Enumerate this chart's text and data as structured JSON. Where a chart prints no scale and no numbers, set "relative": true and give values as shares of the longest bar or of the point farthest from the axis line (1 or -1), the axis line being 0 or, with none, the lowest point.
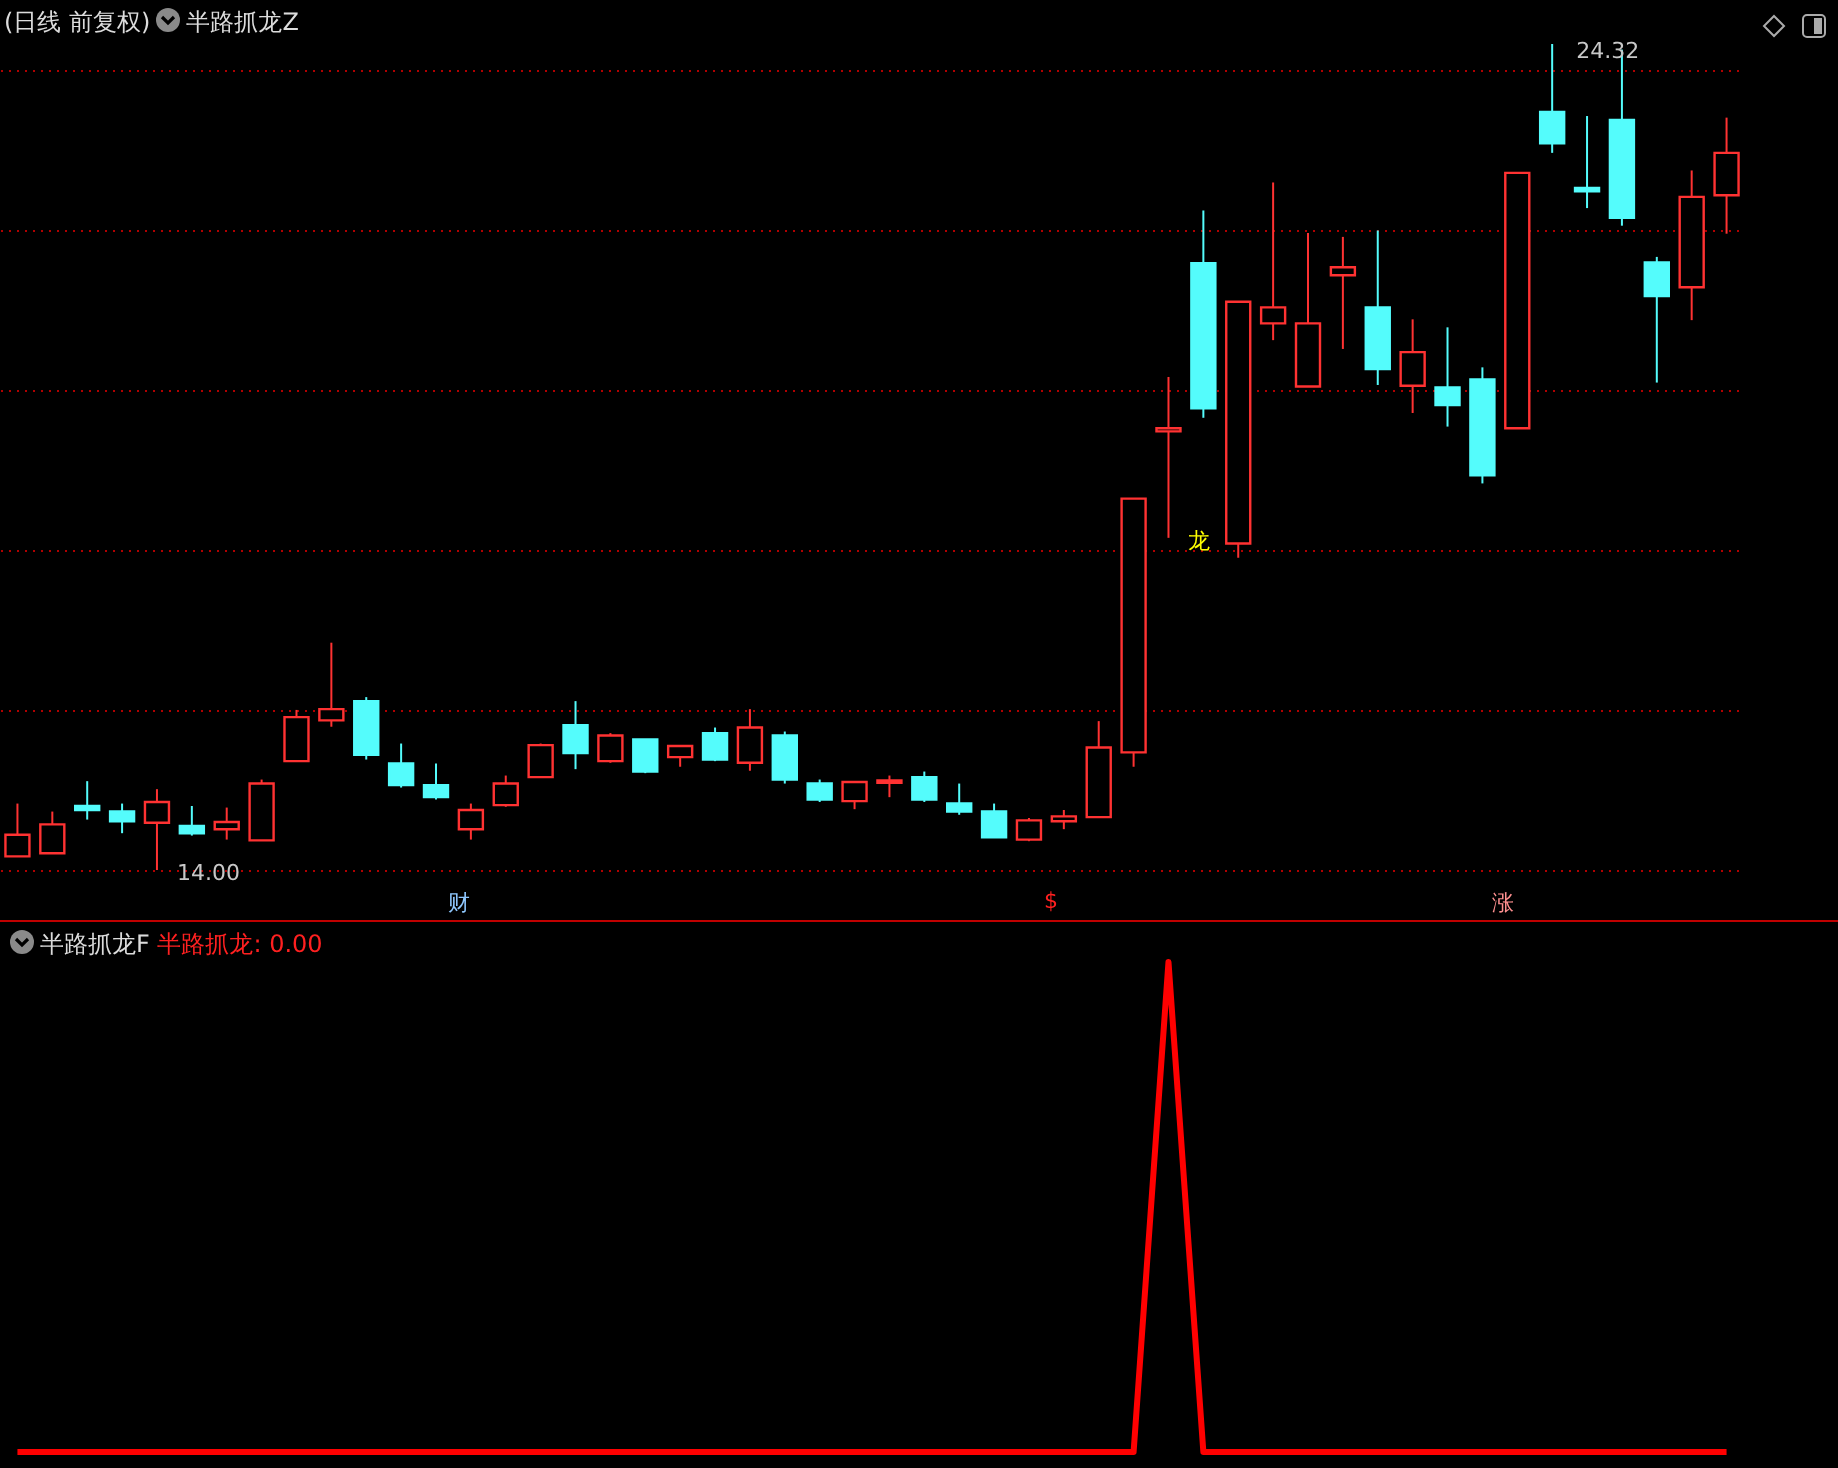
{
  "chart_data": [
    {
      "type": "candlestick",
      "title": "(日线 前复权)",
      "subtitle": "半路抓龙Z",
      "categories": [
        null,
        null,
        null,
        null,
        null,
        null,
        null,
        null,
        null,
        null,
        null,
        null,
        null,
        null,
        null,
        null,
        null,
        null,
        null,
        null,
        null,
        null,
        null,
        null,
        null,
        null,
        null,
        null,
        null,
        null,
        null,
        null,
        null,
        null,
        null,
        null,
        null,
        null,
        null,
        null,
        null,
        null,
        null,
        null,
        null,
        null,
        null,
        null,
        null,
        null
      ],
      "ohlc": [
        [
          14.17,
          14.83,
          14.17,
          14.44
        ],
        [
          14.21,
          14.73,
          14.21,
          14.57
        ],
        [
          14.8,
          15.11,
          14.63,
          14.75
        ],
        [
          14.73,
          14.83,
          14.46,
          14.61
        ],
        [
          14.59,
          15.01,
          14.0,
          14.85
        ],
        [
          14.55,
          14.8,
          14.43,
          14.46
        ],
        [
          14.51,
          14.78,
          14.38,
          14.6
        ],
        [
          14.37,
          15.13,
          14.37,
          15.08
        ],
        [
          15.36,
          16.0,
          15.36,
          15.91
        ],
        [
          15.87,
          16.84,
          15.79,
          16.01
        ],
        [
          16.11,
          16.16,
          15.38,
          15.44
        ],
        [
          15.33,
          15.58,
          15.03,
          15.06
        ],
        [
          15.06,
          15.33,
          14.88,
          14.91
        ],
        [
          14.51,
          14.83,
          14.38,
          14.75
        ],
        [
          14.81,
          15.18,
          14.79,
          15.08
        ],
        [
          15.16,
          15.58,
          15.16,
          15.56
        ],
        [
          15.81,
          16.11,
          15.26,
          15.46
        ],
        [
          15.36,
          15.71,
          15.34,
          15.68
        ],
        [
          15.63,
          15.63,
          15.21,
          15.23
        ],
        [
          15.41,
          15.55,
          15.29,
          15.55
        ],
        [
          15.71,
          15.78,
          15.36,
          15.38
        ],
        [
          15.34,
          16.01,
          15.24,
          15.78
        ],
        [
          15.68,
          15.73,
          15.08,
          15.13
        ],
        [
          15.08,
          15.13,
          14.85,
          14.88
        ],
        [
          14.86,
          15.1,
          14.76,
          15.1
        ],
        [
          15.09,
          15.18,
          14.91,
          15.12
        ],
        [
          15.16,
          15.23,
          14.85,
          14.88
        ],
        [
          14.83,
          15.08,
          14.69,
          14.73
        ],
        [
          14.73,
          14.83,
          14.41,
          14.41
        ],
        [
          14.38,
          14.65,
          14.36,
          14.62
        ],
        [
          14.61,
          14.75,
          14.51,
          14.67
        ],
        [
          14.66,
          15.86,
          14.66,
          15.53
        ],
        [
          15.47,
          18.64,
          15.29,
          18.64
        ],
        [
          19.48,
          20.16,
          18.15,
          19.52
        ],
        [
          21.58,
          22.24,
          19.65,
          19.77
        ],
        [
          18.08,
          21.1,
          17.9,
          21.1
        ],
        [
          20.83,
          22.59,
          20.62,
          21.03
        ],
        [
          20.04,
          21.96,
          20.04,
          20.83
        ],
        [
          21.43,
          21.91,
          20.51,
          21.53
        ],
        [
          21.03,
          21.99,
          20.06,
          20.26
        ],
        [
          20.05,
          20.88,
          19.71,
          20.47
        ],
        [
          20.03,
          20.78,
          19.54,
          19.81
        ],
        [
          20.13,
          20.28,
          18.83,
          18.93
        ],
        [
          19.52,
          22.71,
          19.52,
          22.71
        ],
        [
          23.47,
          24.32,
          22.96,
          23.08
        ],
        [
          22.52,
          23.42,
          22.27,
          22.48
        ],
        [
          23.37,
          24.25,
          22.05,
          22.15
        ],
        [
          21.59,
          21.66,
          20.09,
          21.17
        ],
        [
          21.28,
          22.74,
          20.87,
          22.41
        ],
        [
          22.43,
          23.4,
          21.95,
          22.96
        ]
      ],
      "colors": [
        "#ff3232",
        "#ff3232",
        "#54fcfc",
        "#54fcfc",
        "#ff3232",
        "#54fcfc",
        "#ff3232",
        "#ff3232",
        "#ff3232",
        "#ff3232",
        "#54fcfc",
        "#54fcfc",
        "#54fcfc",
        "#ff3232",
        "#ff3232",
        "#ff3232",
        "#54fcfc",
        "#ff3232",
        "#54fcfc",
        "#ff3232",
        "#54fcfc",
        "#ff3232",
        "#54fcfc",
        "#54fcfc",
        "#ff3232",
        "#ff3232",
        "#54fcfc",
        "#54fcfc",
        "#54fcfc",
        "#ff3232",
        "#ff3232",
        "#ff3232",
        "#ff3232",
        "#ff3232",
        "#54fcfc",
        "#ff3232",
        "#ff3232",
        "#ff3232",
        "#ff3232",
        "#54fcfc",
        "#ff3232",
        "#54fcfc",
        "#54fcfc",
        "#ff3232",
        "#54fcfc",
        "#54fcfc",
        "#54fcfc",
        "#54fcfc",
        "#ff3232",
        "#ff3232"
      ],
      "yticks": [
        {
          "value": 14,
          "label": null
        },
        {
          "value": 16,
          "label": null
        },
        {
          "value": 18,
          "label": null
        },
        {
          "value": 20,
          "label": null
        },
        {
          "value": 22,
          "label": null
        },
        {
          "value": 24,
          "label": null
        }
      ],
      "grid": "y",
      "annotations": [
        "24.32",
        "14.00",
        "龙",
        "财",
        "$",
        "涨"
      ]
    },
    {
      "type": "line",
      "title": "半路抓龙F",
      "relative": true,
      "categories": [
        null,
        null,
        null,
        null,
        null,
        null,
        null,
        null,
        null,
        null,
        null,
        null,
        null,
        null,
        null,
        null,
        null,
        null,
        null,
        null,
        null,
        null,
        null,
        null,
        null,
        null,
        null,
        null,
        null,
        null,
        null,
        null,
        null,
        null,
        null,
        null,
        null,
        null,
        null,
        null,
        null,
        null,
        null,
        null,
        null,
        null,
        null,
        null,
        null,
        null
      ],
      "series": [
        {
          "color": "#ff0000",
          "values": [
            0,
            0,
            0,
            0,
            0,
            0,
            0,
            0,
            0,
            0,
            0,
            0,
            0,
            0,
            0,
            0,
            0,
            0,
            0,
            0,
            0,
            0,
            0,
            0,
            0,
            0,
            0,
            0,
            0,
            0,
            0,
            0,
            0,
            1,
            0,
            0,
            0,
            0,
            0,
            0,
            0,
            0,
            0,
            0,
            0,
            0,
            0,
            0,
            0,
            0
          ]
        }
      ],
      "annotations": [
        "半路抓龙: 0.00"
      ]
    }
  ]
}
